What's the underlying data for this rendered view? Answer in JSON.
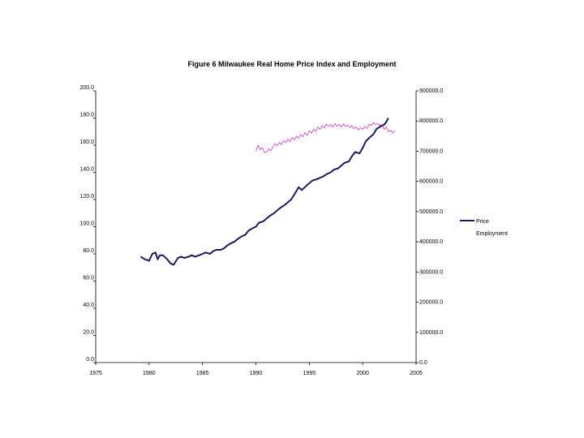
{
  "chart_data": {
    "type": "line",
    "title": "Figure 6 Milwaukee Real Home Price Index and Employment",
    "xlabel": "",
    "ylabel": "",
    "xlim": [
      1975,
      2005
    ],
    "x_ticks": [
      "1975",
      "1980",
      "1985",
      "1990",
      "1995",
      "2000",
      "2005"
    ],
    "ylim": [
      0,
      200
    ],
    "y_ticks": [
      "0.0",
      "20.0",
      "40.0",
      "60.0",
      "80.0",
      "100.0",
      "120.0",
      "140.0",
      "160.0",
      "180.0",
      "200.0"
    ],
    "y2lim": [
      0,
      900000
    ],
    "y2_ticks": [
      "0.0",
      "100000.0",
      "200000.0",
      "300000.0",
      "400000.0",
      "500000.0",
      "600000.0",
      "700000.0",
      "800000.0",
      "900000.0"
    ],
    "grid": false,
    "legend_position": "right",
    "series": [
      {
        "name": "Price",
        "axis": "left",
        "color": "#1a1a5e",
        "x": [
          1979.2,
          1979.6,
          1980.0,
          1980.3,
          1980.6,
          1980.8,
          1981.0,
          1981.3,
          1981.7,
          1982.0,
          1982.3,
          1982.7,
          1983.0,
          1983.3,
          1983.7,
          1984.0,
          1984.3,
          1984.7,
          1985.0,
          1985.3,
          1985.7,
          1986.0,
          1986.3,
          1986.7,
          1987.0,
          1987.3,
          1987.7,
          1988.0,
          1988.3,
          1988.7,
          1989.0,
          1989.3,
          1989.7,
          1990.0,
          1990.3,
          1990.7,
          1991.0,
          1991.3,
          1991.7,
          1992.0,
          1992.3,
          1992.7,
          1993.0,
          1993.3,
          1993.7,
          1994.0,
          1994.3,
          1994.7,
          1995.0,
          1995.3,
          1995.7,
          1996.0,
          1996.3,
          1996.7,
          1997.0,
          1997.3,
          1997.7,
          1998.0,
          1998.3,
          1998.7,
          1999.0,
          1999.3,
          1999.7,
          2000.0,
          2000.3,
          2000.7,
          2001.0,
          2001.3,
          2001.7,
          2002.0,
          2002.2,
          2002.4
        ],
        "values": [
          78,
          76,
          75,
          80,
          81,
          76,
          79,
          79,
          76,
          73,
          72,
          77,
          78,
          77,
          78,
          79,
          78,
          79,
          80,
          81,
          80,
          82,
          83,
          83,
          84,
          86,
          88,
          89,
          91,
          93,
          94,
          97,
          99,
          100,
          103,
          104,
          106,
          108,
          110,
          112,
          114,
          116,
          118,
          120,
          125,
          129,
          127,
          130,
          132,
          134,
          135,
          136,
          137,
          139,
          140,
          142,
          143,
          145,
          147,
          148,
          152,
          155,
          154,
          158,
          163,
          166,
          168,
          172,
          174,
          175,
          177,
          180
        ]
      },
      {
        "name": "Employment",
        "axis": "right",
        "color": "#cc33cc",
        "x": [
          1990.0,
          1990.2,
          1990.4,
          1990.6,
          1990.8,
          1991.0,
          1991.2,
          1991.4,
          1991.6,
          1991.8,
          1992.0,
          1992.2,
          1992.4,
          1992.6,
          1992.8,
          1993.0,
          1993.2,
          1993.4,
          1993.6,
          1993.8,
          1994.0,
          1994.2,
          1994.4,
          1994.6,
          1994.8,
          1995.0,
          1995.2,
          1995.4,
          1995.6,
          1995.8,
          1996.0,
          1996.2,
          1996.4,
          1996.6,
          1996.8,
          1997.0,
          1997.2,
          1997.4,
          1997.6,
          1997.8,
          1998.0,
          1998.2,
          1998.4,
          1998.6,
          1998.8,
          1999.0,
          1999.2,
          1999.4,
          1999.6,
          1999.8,
          2000.0,
          2000.2,
          2000.4,
          2000.6,
          2000.8,
          2001.0,
          2001.2,
          2001.4,
          2001.6,
          2001.8,
          2002.0,
          2002.2,
          2002.4,
          2002.6,
          2002.8,
          2003.0
        ],
        "values": [
          700000,
          720000,
          705000,
          712000,
          695000,
          698000,
          708000,
          702000,
          715000,
          725000,
          718000,
          730000,
          722000,
          735000,
          728000,
          740000,
          732000,
          745000,
          738000,
          750000,
          743000,
          755000,
          748000,
          762000,
          752000,
          768000,
          760000,
          773000,
          766000,
          780000,
          772000,
          785000,
          778000,
          790000,
          782000,
          788000,
          780000,
          792000,
          783000,
          789000,
          780000,
          791000,
          782000,
          786000,
          778000,
          784000,
          775000,
          780000,
          770000,
          778000,
          772000,
          782000,
          775000,
          790000,
          785000,
          795000,
          788000,
          792000,
          785000,
          790000,
          772000,
          780000,
          765000,
          770000,
          760000,
          768000
        ]
      }
    ]
  }
}
